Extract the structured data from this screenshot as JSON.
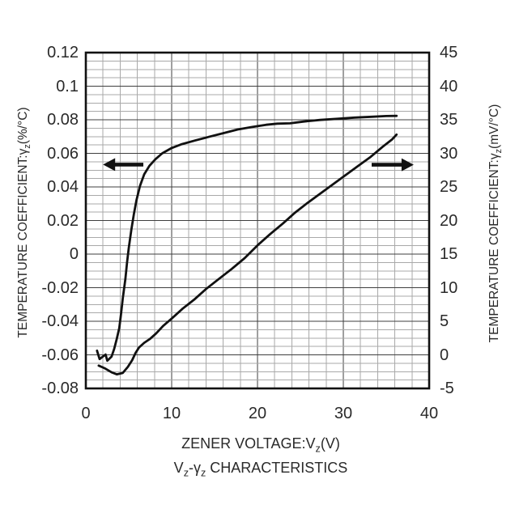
{
  "colors": {
    "background": "#ffffff",
    "curve": "#111111",
    "grid_minor": "#a9a9a9",
    "grid_major": "#3f3f3f",
    "border": "#111111",
    "text": "#2a2a2a"
  },
  "chart_data": {
    "type": "line",
    "title": "Vz-γz CHARACTERISTICS",
    "caption_parts": [
      {
        "t": "V"
      },
      {
        "s": "z"
      },
      {
        "t": "-γ"
      },
      {
        "s": "z"
      },
      {
        "t": " CHARACTERISTICS"
      }
    ],
    "x_axis": {
      "label": "ZENER VOLTAGE:Vz(V)",
      "title_parts": [
        {
          "t": "ZENER VOLTAGE:V"
        },
        {
          "s": "z"
        },
        {
          "t": "(V)"
        }
      ],
      "min": 0,
      "max": 40,
      "major_step": 10,
      "minor_step": 2,
      "ticks": [
        {
          "label": "0",
          "v": 0
        },
        {
          "label": "10",
          "v": 10
        },
        {
          "label": "20",
          "v": 20
        },
        {
          "label": "30",
          "v": 30
        },
        {
          "label": "40",
          "v": 40
        }
      ]
    },
    "y_left_axis": {
      "label": "TEMPERATURE COEFFICIENT:γz(%/°C)",
      "title_parts": [
        {
          "t": "TEMPERATURE COEFFICIENT:γ"
        },
        {
          "s": "z"
        },
        {
          "t": "(%/°C)"
        }
      ],
      "min": -0.08,
      "max": 0.12,
      "major_step": 0.02,
      "minor_step": 0.005,
      "ticks": [
        {
          "label": "0.12",
          "v": 0.12
        },
        {
          "label": "0.1",
          "v": 0.1
        },
        {
          "label": "0.08",
          "v": 0.08
        },
        {
          "label": "0.06",
          "v": 0.06
        },
        {
          "label": "0.04",
          "v": 0.04
        },
        {
          "label": "0.02",
          "v": 0.02
        },
        {
          "label": "0",
          "v": 0
        },
        {
          "label": "-0.02",
          "v": -0.02
        },
        {
          "label": "-0.04",
          "v": -0.04
        },
        {
          "label": "-0.06",
          "v": -0.06
        },
        {
          "label": "-0.08",
          "v": -0.08
        }
      ]
    },
    "y_right_axis": {
      "label": "TEMPERATURE COEFFICIENT:γz(mV/°C)",
      "title_parts": [
        {
          "t": "TEMPERATURE COEFFICIENT:γ"
        },
        {
          "s": "z"
        },
        {
          "t": "(mV/°C)"
        }
      ],
      "min": -5,
      "max": 45,
      "major_step": 5,
      "ticks": [
        {
          "label": "45",
          "v": 45
        },
        {
          "label": "40",
          "v": 40
        },
        {
          "label": "35",
          "v": 35
        },
        {
          "label": "30",
          "v": 30
        },
        {
          "label": "25",
          "v": 25
        },
        {
          "label": "20",
          "v": 20
        },
        {
          "label": "15",
          "v": 15
        },
        {
          "label": "10",
          "v": 10
        },
        {
          "label": "5",
          "v": 5
        },
        {
          "label": "0",
          "v": 0
        },
        {
          "label": "-5",
          "v": -5
        }
      ]
    },
    "grid": {
      "on": true,
      "x_minor": 2,
      "x_major": 10,
      "y_left_minor": 0.005,
      "y_left_major": 0.02
    },
    "series": [
      {
        "name": "temperature-coefficient-percent-per-degC",
        "axis": "left",
        "points": [
          [
            1.3,
            -0.0575
          ],
          [
            1.6,
            -0.0625
          ],
          [
            2.3,
            -0.0598
          ],
          [
            2.5,
            -0.0635
          ],
          [
            3.0,
            -0.061
          ],
          [
            3.3,
            -0.0565
          ],
          [
            3.6,
            -0.0505
          ],
          [
            3.9,
            -0.044
          ],
          [
            4.1,
            -0.0355
          ],
          [
            4.3,
            -0.0265
          ],
          [
            4.6,
            -0.015
          ],
          [
            4.8,
            -0.005
          ],
          [
            5.0,
            0.0035
          ],
          [
            5.3,
            0.0145
          ],
          [
            5.6,
            0.024
          ],
          [
            5.9,
            0.032
          ],
          [
            6.3,
            0.0405
          ],
          [
            6.8,
            0.0475
          ],
          [
            7.4,
            0.0525
          ],
          [
            8.1,
            0.0565
          ],
          [
            8.9,
            0.06
          ],
          [
            10.0,
            0.0632
          ],
          [
            11.2,
            0.0655
          ],
          [
            12.7,
            0.0676
          ],
          [
            14.3,
            0.0698
          ],
          [
            16.0,
            0.072
          ],
          [
            17.7,
            0.0742
          ],
          [
            19.4,
            0.0757
          ],
          [
            21.0,
            0.077
          ],
          [
            22.3,
            0.0777
          ],
          [
            23.8,
            0.0779
          ],
          [
            25.3,
            0.0789
          ],
          [
            27.3,
            0.0799
          ],
          [
            29.3,
            0.0806
          ],
          [
            31.3,
            0.0813
          ],
          [
            33.3,
            0.0818
          ],
          [
            35.0,
            0.0822
          ],
          [
            36.2,
            0.0823
          ]
        ]
      },
      {
        "name": "temperature-coefficient-mV-per-degC",
        "axis": "right",
        "points": [
          [
            1.5,
            -1.6
          ],
          [
            2.2,
            -2.0
          ],
          [
            3.0,
            -2.6
          ],
          [
            3.6,
            -2.9
          ],
          [
            4.3,
            -2.7
          ],
          [
            4.9,
            -1.8
          ],
          [
            5.4,
            -0.8
          ],
          [
            5.8,
            0.3
          ],
          [
            6.2,
            1.1
          ],
          [
            6.8,
            1.8
          ],
          [
            7.5,
            2.4
          ],
          [
            8.2,
            3.2
          ],
          [
            9.0,
            4.3
          ],
          [
            10.0,
            5.4
          ],
          [
            11.3,
            6.9
          ],
          [
            12.6,
            8.2
          ],
          [
            14.0,
            9.8
          ],
          [
            15.5,
            11.3
          ],
          [
            17.0,
            12.8
          ],
          [
            18.5,
            14.4
          ],
          [
            20.0,
            16.3
          ],
          [
            21.5,
            18.0
          ],
          [
            23.0,
            19.6
          ],
          [
            24.3,
            21.1
          ],
          [
            25.7,
            22.5
          ],
          [
            27.2,
            23.9
          ],
          [
            28.7,
            25.3
          ],
          [
            30.2,
            26.7
          ],
          [
            31.7,
            28.1
          ],
          [
            33.2,
            29.5
          ],
          [
            34.6,
            31.0
          ],
          [
            35.7,
            32.1
          ],
          [
            36.2,
            32.8
          ]
        ]
      }
    ],
    "annotations": {
      "arrows": [
        {
          "name": "left-axis-arrow",
          "axis": "left",
          "y": 0.0533,
          "x_tail": 6.7,
          "x_head": 2.0,
          "dir": "left"
        },
        {
          "name": "right-axis-arrow",
          "axis": "right",
          "y": 28.3,
          "x_tail": 33.3,
          "x_head": 38.2,
          "dir": "right"
        }
      ]
    },
    "legend": {
      "position": "none"
    }
  }
}
